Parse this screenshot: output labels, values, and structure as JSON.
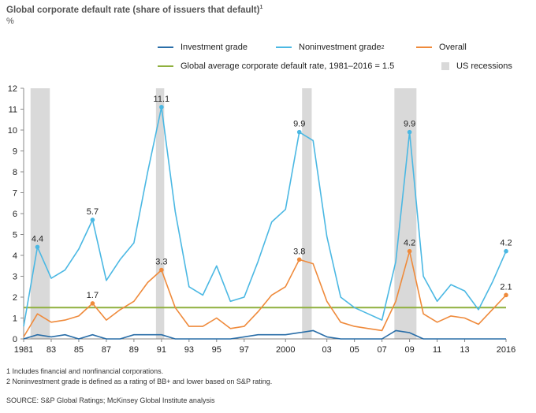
{
  "title": "Global corporate default rate (share of issuers that default)",
  "title_sup": "1",
  "unit": "%",
  "legend": {
    "investment": "Investment grade",
    "noninvestment": "Noninvestment grade",
    "noninvestment_sup": "2",
    "overall": "Overall",
    "average": "Global average corporate default rate, 1981–2016 = 1.5",
    "recessions": "US recessions"
  },
  "footnotes": [
    "1  Includes financial and nonfinancial corporations.",
    "2  Noninvestment grade is defined as a rating of BB+ and lower based on S&P rating."
  ],
  "source": "SOURCE:  S&P Global Ratings; McKinsey Global Institute analysis",
  "colors": {
    "investment": "#2a6ea8",
    "noninvestment": "#4bb8e3",
    "overall": "#ef8a3b",
    "average": "#8fb03e",
    "recession": "#d9d9d9",
    "axis": "#888888"
  },
  "chart_data": {
    "type": "line",
    "ylim": [
      0,
      12
    ],
    "yticks": [
      0,
      1,
      2,
      3,
      4,
      5,
      6,
      7,
      8,
      9,
      10,
      11,
      12
    ],
    "xlim": [
      1981,
      2016
    ],
    "xticks": [
      {
        "year": 1981,
        "label": "1981"
      },
      {
        "year": 1983,
        "label": "83"
      },
      {
        "year": 1985,
        "label": "85"
      },
      {
        "year": 1987,
        "label": "87"
      },
      {
        "year": 1989,
        "label": "89"
      },
      {
        "year": 1991,
        "label": "91"
      },
      {
        "year": 1993,
        "label": "93"
      },
      {
        "year": 1995,
        "label": "95"
      },
      {
        "year": 1997,
        "label": "97"
      },
      {
        "year": 2000,
        "label": "2000"
      },
      {
        "year": 2003,
        "label": "03"
      },
      {
        "year": 2005,
        "label": "05"
      },
      {
        "year": 2007,
        "label": "07"
      },
      {
        "year": 2009,
        "label": "09"
      },
      {
        "year": 2011,
        "label": "11"
      },
      {
        "year": 2013,
        "label": "13"
      },
      {
        "year": 2016,
        "label": "2016"
      }
    ],
    "x": [
      1981,
      1982,
      1983,
      1984,
      1985,
      1986,
      1987,
      1988,
      1989,
      1990,
      1991,
      1992,
      1993,
      1994,
      1995,
      1996,
      1997,
      1998,
      1999,
      2000,
      2001,
      2002,
      2003,
      2004,
      2005,
      2006,
      2007,
      2008,
      2009,
      2010,
      2011,
      2012,
      2013,
      2014,
      2015,
      2016
    ],
    "series": [
      {
        "key": "investment",
        "name": "Investment grade",
        "values": [
          0.0,
          0.2,
          0.1,
          0.2,
          0.0,
          0.2,
          0.0,
          0.0,
          0.2,
          0.2,
          0.2,
          0.0,
          0.0,
          0.0,
          0.0,
          0.0,
          0.1,
          0.2,
          0.2,
          0.2,
          0.3,
          0.4,
          0.1,
          0.0,
          0.0,
          0.0,
          0.0,
          0.4,
          0.3,
          0.0,
          0.0,
          0.0,
          0.0,
          0.0,
          0.0,
          0.0
        ]
      },
      {
        "key": "noninvestment",
        "name": "Noninvestment grade",
        "values": [
          0.6,
          4.4,
          2.9,
          3.3,
          4.3,
          5.7,
          2.8,
          3.8,
          4.6,
          8.0,
          11.1,
          6.1,
          2.5,
          2.1,
          3.5,
          1.8,
          2.0,
          3.7,
          5.6,
          6.2,
          9.9,
          9.5,
          4.9,
          2.0,
          1.5,
          1.2,
          0.9,
          3.7,
          9.9,
          3.0,
          1.8,
          2.6,
          2.3,
          1.4,
          2.7,
          4.2
        ]
      },
      {
        "key": "overall",
        "name": "Overall",
        "values": [
          0.1,
          1.2,
          0.8,
          0.9,
          1.1,
          1.7,
          0.9,
          1.4,
          1.8,
          2.7,
          3.3,
          1.5,
          0.6,
          0.6,
          1.0,
          0.5,
          0.6,
          1.3,
          2.1,
          2.5,
          3.8,
          3.6,
          1.8,
          0.8,
          0.6,
          0.5,
          0.4,
          1.8,
          4.2,
          1.2,
          0.8,
          1.1,
          1.0,
          0.7,
          1.4,
          2.1
        ]
      }
    ],
    "average": {
      "value": 1.5
    },
    "recessions": [
      [
        1981.5,
        1982.9
      ],
      [
        1990.6,
        1991.2
      ],
      [
        2001.2,
        2001.9
      ],
      [
        2007.9,
        2009.5
      ]
    ],
    "labels": [
      {
        "series": "noninvestment",
        "year": 1982,
        "value": 4.4,
        "text": "4.4"
      },
      {
        "series": "noninvestment",
        "year": 1986,
        "value": 5.7,
        "text": "5.7"
      },
      {
        "series": "noninvestment",
        "year": 1991,
        "value": 11.1,
        "text": "11.1"
      },
      {
        "series": "noninvestment",
        "year": 2001,
        "value": 9.9,
        "text": "9.9"
      },
      {
        "series": "noninvestment",
        "year": 2009,
        "value": 9.9,
        "text": "9.9"
      },
      {
        "series": "noninvestment",
        "year": 2016,
        "value": 4.2,
        "text": "4.2"
      },
      {
        "series": "overall",
        "year": 1986,
        "value": 1.7,
        "text": "1.7"
      },
      {
        "series": "overall",
        "year": 1991,
        "value": 3.3,
        "text": "3.3"
      },
      {
        "series": "overall",
        "year": 2001,
        "value": 3.8,
        "text": "3.8"
      },
      {
        "series": "overall",
        "year": 2009,
        "value": 4.2,
        "text": "4.2"
      },
      {
        "series": "overall",
        "year": 2016,
        "value": 2.1,
        "text": "2.1"
      }
    ]
  }
}
